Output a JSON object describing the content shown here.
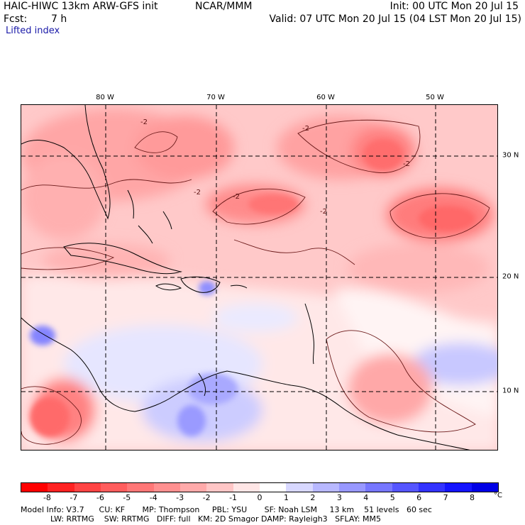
{
  "header": {
    "model": "HAIC-HIWC 13km ARW-GFS init",
    "org": "NCAR/MMM",
    "init": "Init: 00 UTC Mon 20 Jul 15",
    "fcst_label": "Fcst:",
    "fcst_value": "7 h",
    "valid": "Valid: 07 UTC Mon 20 Jul 15 (04 LST Mon 20 Jul 15)",
    "field": "Lifted index"
  },
  "map": {
    "lon_labels": [
      "80 W",
      "70 W",
      "60 W",
      "50 W"
    ],
    "lat_labels": [
      "30 N",
      "20 N",
      "10 N"
    ],
    "contour_labels": [
      "-2",
      "-2",
      "-2",
      "-2",
      "-2",
      "-2"
    ]
  },
  "colorbar": {
    "unit": "°C",
    "ticks": [
      "-8",
      "-7",
      "-6",
      "-5",
      "-4",
      "-3",
      "-2",
      "-1",
      "0",
      "1",
      "2",
      "3",
      "4",
      "5",
      "6",
      "7",
      "8"
    ],
    "colors": [
      "#ff0000",
      "#ff2222",
      "#ff4444",
      "#ff5d5d",
      "#ff7777",
      "#ff9090",
      "#ffaaaa",
      "#ffc6c6",
      "#ffe6e6",
      "#ffffff",
      "#d8d8ff",
      "#b8b8ff",
      "#9898ff",
      "#7777ff",
      "#5555ff",
      "#3333ff",
      "#1414ff",
      "#0000e6"
    ]
  },
  "footer": {
    "line1": "Model Info: V3.7      CU: KF       MP: Thompson     PBL: YSU       SF: Noah LSM     13 km    51 levels   60 sec",
    "line2": "            LW: RRTMG    SW: RRTMG   DIFF: full   KM: 2D Smagor DAMP: Rayleigh3   SFLAY: MM5"
  }
}
